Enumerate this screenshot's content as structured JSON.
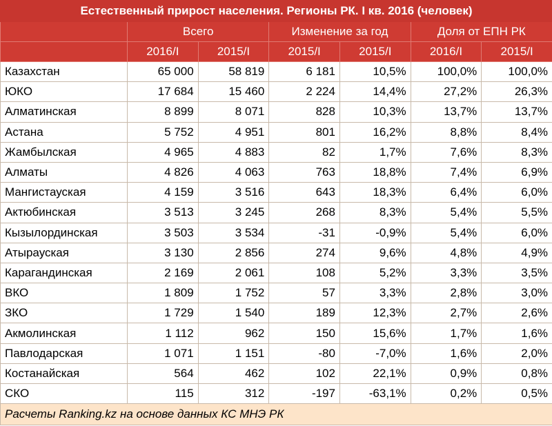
{
  "title": "Естественный прирост населения. Регионы РК. I кв. 2016 (человек)",
  "groups": {
    "total": "Всего",
    "change": "Изменение за год",
    "share": "Доля от ЕПН РК"
  },
  "subheaders": [
    "2016/I",
    "2015/I",
    "2015/I",
    "2015/I",
    "2016/I",
    "2015/I"
  ],
  "rows": [
    {
      "region": "Казахстан",
      "v2016": "65 000",
      "v2015": "58 819",
      "abs": "6 181",
      "pct": "10,5%",
      "s2016": "100,0%",
      "s2015": "100,0%"
    },
    {
      "region": "ЮКО",
      "v2016": "17 684",
      "v2015": "15 460",
      "abs": "2 224",
      "pct": "14,4%",
      "s2016": "27,2%",
      "s2015": "26,3%"
    },
    {
      "region": "Алматинская",
      "v2016": "8 899",
      "v2015": "8 071",
      "abs": "828",
      "pct": "10,3%",
      "s2016": "13,7%",
      "s2015": "13,7%"
    },
    {
      "region": "Астана",
      "v2016": "5 752",
      "v2015": "4 951",
      "abs": "801",
      "pct": "16,2%",
      "s2016": "8,8%",
      "s2015": "8,4%"
    },
    {
      "region": "Жамбылская",
      "v2016": "4 965",
      "v2015": "4 883",
      "abs": "82",
      "pct": "1,7%",
      "s2016": "7,6%",
      "s2015": "8,3%"
    },
    {
      "region": "Алматы",
      "v2016": "4 826",
      "v2015": "4 063",
      "abs": "763",
      "pct": "18,8%",
      "s2016": "7,4%",
      "s2015": "6,9%"
    },
    {
      "region": "Мангистауская",
      "v2016": "4 159",
      "v2015": "3 516",
      "abs": "643",
      "pct": "18,3%",
      "s2016": "6,4%",
      "s2015": "6,0%"
    },
    {
      "region": "Актюбинская",
      "v2016": "3 513",
      "v2015": "3 245",
      "abs": "268",
      "pct": "8,3%",
      "s2016": "5,4%",
      "s2015": "5,5%"
    },
    {
      "region": "Кызылординская",
      "v2016": "3 503",
      "v2015": "3 534",
      "abs": "-31",
      "pct": "-0,9%",
      "s2016": "5,4%",
      "s2015": "6,0%"
    },
    {
      "region": "Атырауская",
      "v2016": "3 130",
      "v2015": "2 856",
      "abs": "274",
      "pct": "9,6%",
      "s2016": "4,8%",
      "s2015": "4,9%"
    },
    {
      "region": "Карагандинская",
      "v2016": "2 169",
      "v2015": "2 061",
      "abs": "108",
      "pct": "5,2%",
      "s2016": "3,3%",
      "s2015": "3,5%"
    },
    {
      "region": "ВКО",
      "v2016": "1 809",
      "v2015": "1 752",
      "abs": "57",
      "pct": "3,3%",
      "s2016": "2,8%",
      "s2015": "3,0%"
    },
    {
      "region": "ЗКО",
      "v2016": "1 729",
      "v2015": "1 540",
      "abs": "189",
      "pct": "12,3%",
      "s2016": "2,7%",
      "s2015": "2,6%"
    },
    {
      "region": "Акмолинская",
      "v2016": "1 112",
      "v2015": "962",
      "abs": "150",
      "pct": "15,6%",
      "s2016": "1,7%",
      "s2015": "1,6%"
    },
    {
      "region": "Павлодарская",
      "v2016": "1 071",
      "v2015": "1 151",
      "abs": "-80",
      "pct": "-7,0%",
      "s2016": "1,6%",
      "s2015": "2,0%"
    },
    {
      "region": "Костанайская",
      "v2016": "564",
      "v2015": "462",
      "abs": "102",
      "pct": "22,1%",
      "s2016": "0,9%",
      "s2015": "0,8%"
    },
    {
      "region": "СКО",
      "v2016": "115",
      "v2015": "312",
      "abs": "-197",
      "pct": "-63,1%",
      "s2016": "0,2%",
      "s2015": "0,5%"
    }
  ],
  "footer": "Расчеты Ranking.kz на основе данных КС МНЭ РК",
  "colors": {
    "header_red": "#cf3b33",
    "title_red": "#c7362f",
    "footer_bg": "#fde4c9",
    "grid": "#c8b9a9"
  }
}
